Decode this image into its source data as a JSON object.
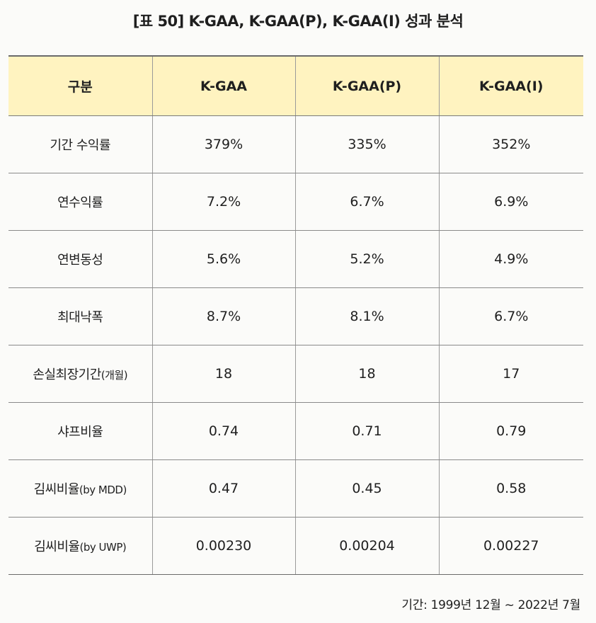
{
  "title": "[표 50] K-GAA, K-GAA(P), K-GAA(I) 성과 분석",
  "table": {
    "headers": [
      "구분",
      "K-GAA",
      "K-GAA(P)",
      "K-GAA(I)"
    ],
    "rows": [
      {
        "label": "기간 수익률",
        "label_sub": "",
        "values": [
          "379%",
          "335%",
          "352%"
        ]
      },
      {
        "label": "연수익률",
        "label_sub": "",
        "values": [
          "7.2%",
          "6.7%",
          "6.9%"
        ]
      },
      {
        "label": "연변동성",
        "label_sub": "",
        "values": [
          "5.6%",
          "5.2%",
          "4.9%"
        ]
      },
      {
        "label": "최대낙폭",
        "label_sub": "",
        "values": [
          "8.7%",
          "8.1%",
          "6.7%"
        ]
      },
      {
        "label": "손실최장기간",
        "label_sub": "(개월)",
        "values": [
          "18",
          "18",
          "17"
        ]
      },
      {
        "label": "샤프비율",
        "label_sub": "",
        "values": [
          "0.74",
          "0.71",
          "0.79"
        ]
      },
      {
        "label": "김씨비율",
        "label_sub": "(by MDD)",
        "values": [
          "0.47",
          "0.45",
          "0.58"
        ]
      },
      {
        "label": "김씨비율",
        "label_sub": "(by UWP)",
        "values": [
          "0.00230",
          "0.00204",
          "0.00227"
        ]
      }
    ]
  },
  "footnote": "기간: 1999년 12월 ~ 2022년 7월",
  "colors": {
    "header_bg": "#fff3c0",
    "rule": "#8a8a8a",
    "text": "#1f1f1f"
  }
}
